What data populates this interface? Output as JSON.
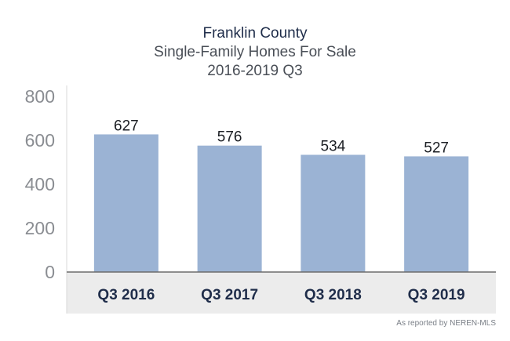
{
  "chart_data": {
    "type": "bar",
    "title": "Franklin County",
    "subtitle": "Single-Family Homes For Sale",
    "subtitle2": "2016-2019 Q3",
    "categories": [
      "Q3 2016",
      "Q3 2017",
      "Q3 2018",
      "Q3 2019"
    ],
    "values": [
      627,
      576,
      534,
      527
    ],
    "ylim": [
      0,
      800
    ],
    "yticks": [
      0,
      200,
      400,
      600,
      800
    ],
    "grid": false,
    "bar_color": "#9bb3d4",
    "source": "As reported by NEREN-MLS"
  }
}
